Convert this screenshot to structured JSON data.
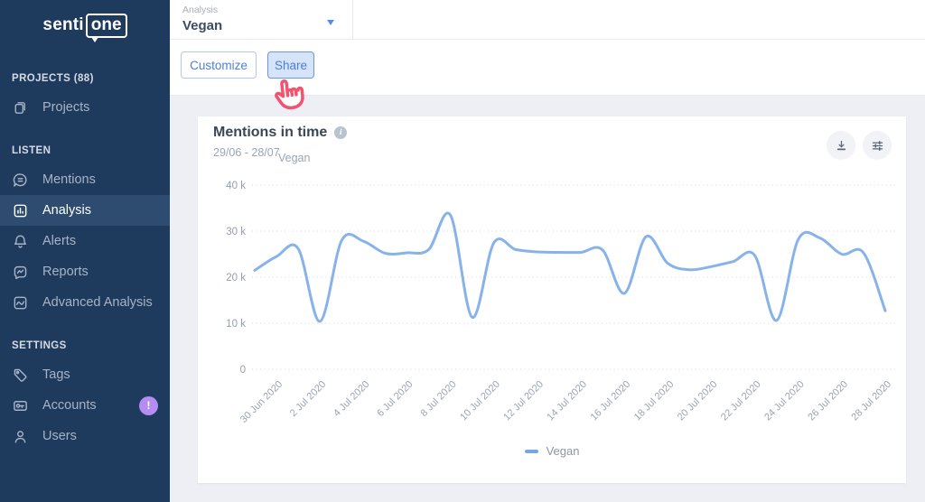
{
  "sidebar": {
    "logo": {
      "prefix": "senti",
      "boxed": "one"
    },
    "sections": [
      {
        "header": "PROJECTS (88)",
        "items": [
          {
            "label": "Projects",
            "icon": "projects-icon"
          }
        ]
      },
      {
        "header": "LISTEN",
        "items": [
          {
            "label": "Mentions",
            "icon": "mentions-icon"
          },
          {
            "label": "Analysis",
            "icon": "analysis-icon",
            "active": true
          },
          {
            "label": "Alerts",
            "icon": "bell-icon"
          },
          {
            "label": "Reports",
            "icon": "reports-icon"
          },
          {
            "label": "Advanced Analysis",
            "icon": "advanced-analysis-icon"
          }
        ]
      },
      {
        "header": "SETTINGS",
        "items": [
          {
            "label": "Tags",
            "icon": "tag-icon"
          },
          {
            "label": "Accounts",
            "icon": "accounts-icon",
            "badge": "!"
          },
          {
            "label": "Users",
            "icon": "users-icon"
          }
        ]
      }
    ]
  },
  "topbar": {
    "field_label": "Analysis",
    "field_value": "Vegan"
  },
  "toolbar": {
    "customize": "Customize",
    "share": "Share"
  },
  "card": {
    "title": "Mentions in time",
    "date_range": "29/06 - 28/07",
    "series_sublabel": "Vegan"
  },
  "chart_data": {
    "type": "line",
    "title": "Mentions in time",
    "date_range": "29/06 - 28/07",
    "x": [
      "29 Jun 2020",
      "30 Jun 2020",
      "1 Jul 2020",
      "2 Jul 2020",
      "3 Jul 2020",
      "4 Jul 2020",
      "5 Jul 2020",
      "6 Jul 2020",
      "7 Jul 2020",
      "8 Jul 2020",
      "9 Jul 2020",
      "10 Jul 2020",
      "11 Jul 2020",
      "12 Jul 2020",
      "13 Jul 2020",
      "14 Jul 2020",
      "15 Jul 2020",
      "16 Jul 2020",
      "17 Jul 2020",
      "18 Jul 2020",
      "19 Jul 2020",
      "20 Jul 2020",
      "21 Jul 2020",
      "22 Jul 2020",
      "23 Jul 2020",
      "24 Jul 2020",
      "25 Jul 2020",
      "26 Jul 2020",
      "27 Jul 2020",
      "28 Jul 2020"
    ],
    "series": [
      {
        "name": "Vegan",
        "color": "#87b3ea",
        "values": [
          21500,
          24500,
          26200,
          10400,
          28000,
          27800,
          25200,
          25300,
          26000,
          33500,
          11300,
          27500,
          26000,
          25500,
          25400,
          25400,
          25900,
          16500,
          28800,
          23000,
          21600,
          22300,
          23400,
          24700,
          10600,
          28200,
          28500,
          25000,
          25300,
          12700
        ]
      }
    ],
    "x_tick_labels": [
      "30 Jun 2020",
      "2 Jul 2020",
      "4 Jul 2020",
      "6 Jul 2020",
      "8 Jul 2020",
      "10 Jul 2020",
      "12 Jul 2020",
      "14 Jul 2020",
      "16 Jul 2020",
      "18 Jul 2020",
      "20 Jul 2020",
      "22 Jul 2020",
      "24 Jul 2020",
      "26 Jul 2020",
      "28 Jul 2020"
    ],
    "y_ticks": [
      {
        "label": "40 k",
        "value": 40000
      },
      {
        "label": "30 k",
        "value": 30000
      },
      {
        "label": "20 k",
        "value": 20000
      },
      {
        "label": "10 k",
        "value": 10000
      },
      {
        "label": "0",
        "value": 0
      }
    ],
    "ylim": [
      0,
      40000
    ],
    "grid": "horizontal-dotted",
    "legend": {
      "position": "bottom-center",
      "entries": [
        "Vegan"
      ]
    }
  },
  "colors": {
    "sidebar_bg": "#1e3a5d",
    "sidebar_active_bg": "#2d4c70",
    "accent_blue": "#4c7fd9",
    "line_blue": "#87b3ea",
    "legend_dash": "#74a7e6",
    "badge_purple": "#b48cf2",
    "hand_pink": "#f0546e",
    "content_bg": "#edeff4"
  }
}
